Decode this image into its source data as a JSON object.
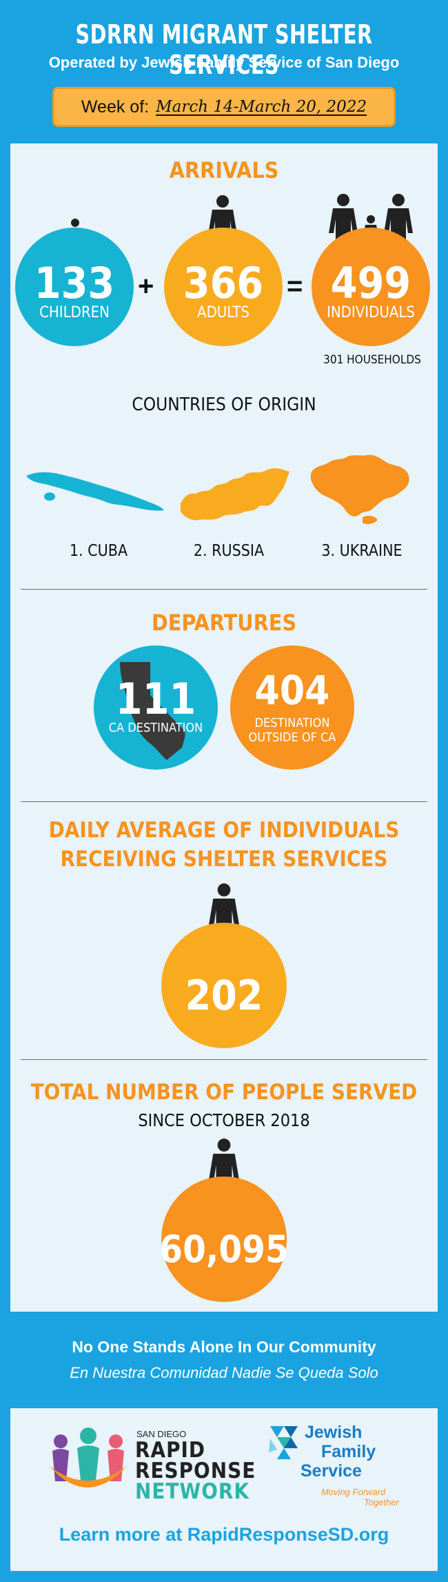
{
  "header": {
    "title": "SDRRN MIGRANT SHELTER SERVICES",
    "subtitle": "Operated by Jewish Family Service of San Diego",
    "week_label": "Week of:",
    "week_dates": "March 14-March 20, 2022"
  },
  "arrivals": {
    "title": "ARRIVALS",
    "children": {
      "value": "133",
      "label": "CHILDREN"
    },
    "plus": "+",
    "adults": {
      "value": "366",
      "label": "ADULTS"
    },
    "equals": "=",
    "individuals": {
      "value": "499",
      "label": "INDIVIDUALS"
    },
    "households": "301 HOUSEHOLDS"
  },
  "countries": {
    "title": "COUNTRIES OF ORIGIN",
    "items": [
      "1. CUBA",
      "2. RUSSIA",
      "3. UKRAINE"
    ]
  },
  "departures": {
    "title": "DEPARTURES",
    "ca": {
      "value": "111",
      "label": "CA DESTINATION"
    },
    "outside": {
      "value": "404",
      "label_line1": "DESTINATION",
      "label_line2": "OUTSIDE OF CA"
    }
  },
  "daily": {
    "title_line1": "DAILY AVERAGE OF INDIVIDUALS",
    "title_line2": "RECEIVING SHELTER SERVICES",
    "value": "202"
  },
  "total": {
    "title": "TOTAL NUMBER OF PEOPLE SERVED",
    "subtitle": "SINCE OCTOBER 2018",
    "value": "60,095"
  },
  "footer": {
    "tagline_en": "No One Stands Alone In Our Community",
    "tagline_es": "En Nuestra Comunidad Nadie Se Queda Solo",
    "rrn_small": "SAN DIEGO",
    "rrn_line1": "RAPID",
    "rrn_line2": "RESPONSE",
    "rrn_line3": "NETWORK",
    "jfs_line1": "Jewish",
    "jfs_line2": "Family",
    "jfs_line3": "Service",
    "jfs_tag1": "Moving Forward",
    "jfs_tag2": "Together",
    "learn_more": "Learn more at RapidResponseSD.org"
  },
  "colors": {
    "blue": "#1aa3e0",
    "cyan_circle": "#16b3d3",
    "yellow_circle": "#f9ab1f",
    "orange_circle": "#f7931e",
    "panel": "#e8f3fa"
  }
}
